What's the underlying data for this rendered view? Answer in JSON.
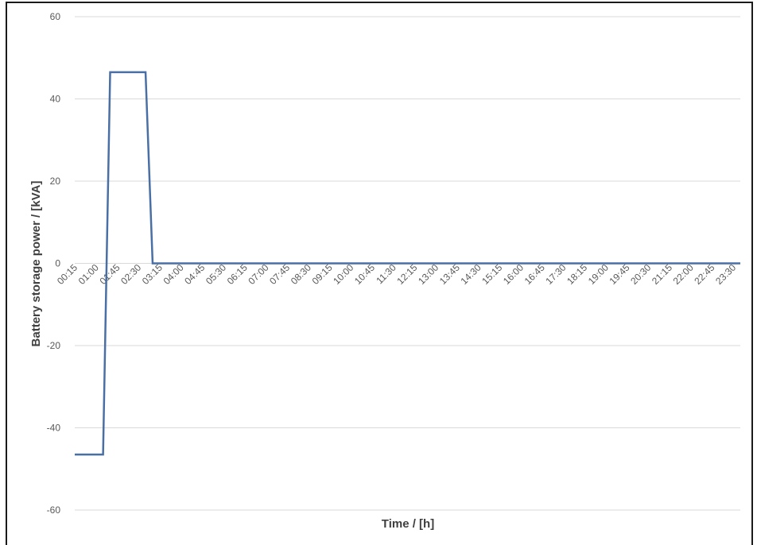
{
  "chart_data": {
    "type": "line",
    "title": "",
    "xlabel": "Time / [h]",
    "ylabel": "Battery storage power / [kVA]",
    "ylim": [
      -60,
      60
    ],
    "yticks": [
      -60,
      -40,
      -20,
      0,
      20,
      40,
      60
    ],
    "grid": true,
    "legend": "none",
    "color": "#4a6fa5",
    "xtick_labels": [
      "00:15",
      "01:00",
      "01:45",
      "02:30",
      "03:15",
      "04:00",
      "04:45",
      "05:30",
      "06:15",
      "07:00",
      "07:45",
      "08:30",
      "09:15",
      "10:00",
      "10:45",
      "11:30",
      "12:15",
      "13:00",
      "13:45",
      "14:30",
      "15:15",
      "16:00",
      "16:45",
      "17:30",
      "18:15",
      "19:00",
      "19:45",
      "20:30",
      "21:15",
      "22:00",
      "22:45",
      "23:30"
    ],
    "x": [
      "00:15",
      "00:30",
      "00:45",
      "01:00",
      "01:15",
      "01:30",
      "01:45",
      "02:00",
      "02:15",
      "02:30",
      "02:45",
      "03:00",
      "03:15",
      "03:30",
      "03:45",
      "04:00",
      "04:15",
      "04:30",
      "04:45",
      "05:00",
      "05:15",
      "05:30",
      "05:45",
      "06:00",
      "06:15",
      "06:30",
      "06:45",
      "07:00",
      "07:15",
      "07:30",
      "07:45",
      "08:00",
      "08:15",
      "08:30",
      "08:45",
      "09:00",
      "09:15",
      "09:30",
      "09:45",
      "10:00",
      "10:15",
      "10:30",
      "10:45",
      "11:00",
      "11:15",
      "11:30",
      "11:45",
      "12:00",
      "12:15",
      "12:30",
      "12:45",
      "13:00",
      "13:15",
      "13:30",
      "13:45",
      "14:00",
      "14:15",
      "14:30",
      "14:45",
      "15:00",
      "15:15",
      "15:30",
      "15:45",
      "16:00",
      "16:15",
      "16:30",
      "16:45",
      "17:00",
      "17:15",
      "17:30",
      "17:45",
      "18:00",
      "18:15",
      "18:30",
      "18:45",
      "19:00",
      "19:15",
      "19:30",
      "19:45",
      "20:00",
      "20:15",
      "20:30",
      "20:45",
      "21:00",
      "21:15",
      "21:30",
      "21:45",
      "22:00",
      "22:15",
      "22:30",
      "22:45",
      "23:00",
      "23:15",
      "23:30",
      "23:45"
    ],
    "series": [
      {
        "values": [
          -46.5,
          -46.5,
          -46.5,
          -46.5,
          -46.5,
          46.5,
          46.5,
          46.5,
          46.5,
          46.5,
          46.5,
          0,
          0,
          0,
          0,
          0,
          0,
          0,
          0,
          0,
          0,
          0,
          0,
          0,
          0,
          0,
          0,
          0,
          0,
          0,
          0,
          0,
          0,
          0,
          0,
          0,
          0,
          0,
          0,
          0,
          0,
          0,
          0,
          0,
          0,
          0,
          0,
          0,
          0,
          0,
          0,
          0,
          0,
          0,
          0,
          0,
          0,
          0,
          0,
          0,
          0,
          0,
          0,
          0,
          0,
          0,
          0,
          0,
          0,
          0,
          0,
          0,
          0,
          0,
          0,
          0,
          0,
          0,
          0,
          0,
          0,
          0,
          0,
          0,
          0,
          0,
          0,
          0,
          0,
          0,
          0,
          0,
          0,
          0,
          0
        ]
      }
    ]
  }
}
